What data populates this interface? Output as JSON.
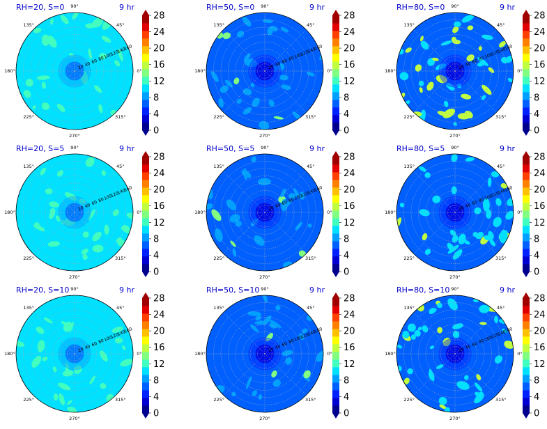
{
  "chart_data": [
    {
      "type": "heatmap",
      "projection": "polar",
      "title": "RH=20, S=0",
      "time_label": "9 hr",
      "rh": 20,
      "s": 0,
      "background_level": 10,
      "cell_fraction": 0.22,
      "cell_level": 12,
      "hot_fraction": 0.0,
      "hot_level": 14,
      "center_level": 6
    },
    {
      "type": "heatmap",
      "projection": "polar",
      "title": "RH=50, S=0",
      "time_label": "9 hr",
      "rh": 50,
      "s": 0,
      "background_level": 7,
      "cell_fraction": 0.18,
      "cell_level": 9,
      "hot_fraction": 0.03,
      "hot_level": 15,
      "center_level": 3
    },
    {
      "type": "heatmap",
      "projection": "polar",
      "title": "RH=80, S=0",
      "time_label": "9 hr",
      "rh": 80,
      "s": 0,
      "background_level": 7,
      "cell_fraction": 0.22,
      "cell_level": 10,
      "hot_fraction": 0.07,
      "hot_level": 17,
      "center_level": 2
    },
    {
      "type": "heatmap",
      "projection": "polar",
      "title": "RH=20, S=5",
      "time_label": "9 hr",
      "rh": 20,
      "s": 5,
      "background_level": 10,
      "cell_fraction": 0.22,
      "cell_level": 12,
      "hot_fraction": 0.0,
      "hot_level": 14,
      "center_level": 6
    },
    {
      "type": "heatmap",
      "projection": "polar",
      "title": "RH=50, S=5",
      "time_label": "9 hr",
      "rh": 50,
      "s": 5,
      "background_level": 7,
      "cell_fraction": 0.18,
      "cell_level": 9,
      "hot_fraction": 0.03,
      "hot_level": 15,
      "center_level": 3
    },
    {
      "type": "heatmap",
      "projection": "polar",
      "title": "RH=80, S=5",
      "time_label": "9 hr",
      "rh": 80,
      "s": 5,
      "background_level": 7,
      "cell_fraction": 0.22,
      "cell_level": 10,
      "hot_fraction": 0.07,
      "hot_level": 17,
      "center_level": 2
    },
    {
      "type": "heatmap",
      "projection": "polar",
      "title": "RH=20, S=10",
      "time_label": "9 hr",
      "rh": 20,
      "s": 10,
      "background_level": 10,
      "cell_fraction": 0.22,
      "cell_level": 12,
      "hot_fraction": 0.0,
      "hot_level": 14,
      "center_level": 6
    },
    {
      "type": "heatmap",
      "projection": "polar",
      "title": "RH=50, S=10",
      "time_label": "9 hr",
      "rh": 50,
      "s": 10,
      "background_level": 7,
      "cell_fraction": 0.18,
      "cell_level": 9,
      "hot_fraction": 0.03,
      "hot_level": 15,
      "center_level": 3
    },
    {
      "type": "heatmap",
      "projection": "polar",
      "title": "RH=80, S=10",
      "time_label": "9 hr",
      "rh": 80,
      "s": 10,
      "background_level": 7,
      "cell_fraction": 0.22,
      "cell_level": 10,
      "hot_fraction": 0.07,
      "hot_level": 17,
      "center_level": 2
    }
  ],
  "shared": {
    "angle_ticks": [
      "0°",
      "45°",
      "90°",
      "135°",
      "180°",
      "225°",
      "270°",
      "315°"
    ],
    "radial_ticks": [
      "20",
      "40",
      "60",
      "80",
      "100",
      "120",
      "140",
      "160"
    ],
    "radial_max": 160,
    "colorbar_ticks": [
      "0",
      "4",
      "8",
      "12",
      "16",
      "20",
      "24",
      "28"
    ],
    "colorbar_levels": [
      0,
      2,
      4,
      6,
      8,
      10,
      12,
      14,
      16,
      18,
      20,
      22,
      24,
      26,
      28
    ],
    "colorbar_colors": [
      "#00008f",
      "#0000d0",
      "#0020ff",
      "#0060ff",
      "#00a0ff",
      "#00e0ff",
      "#40ffbf",
      "#80ff80",
      "#c0ff40",
      "#ffff00",
      "#ffc000",
      "#ff8000",
      "#ff4000",
      "#e00000",
      "#a00000"
    ],
    "colorbar_extend": "both"
  }
}
